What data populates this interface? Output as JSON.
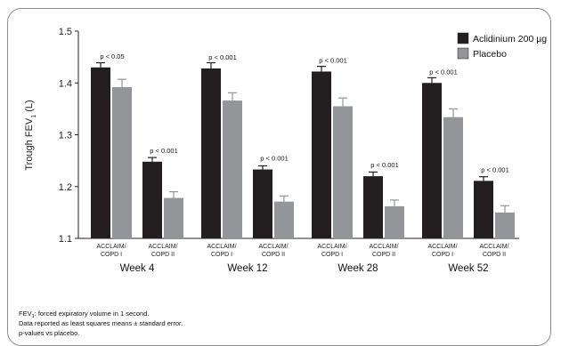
{
  "chart_data": {
    "type": "bar",
    "ylabel": "Trough FEV",
    "ylabel_sub": "1",
    "ylabel_unit": " (L)",
    "ylim": [
      1.1,
      1.5
    ],
    "yticks": [
      "1.1",
      "1.2",
      "1.3",
      "1.4",
      "1.5"
    ],
    "ytick_values": [
      1.1,
      1.2,
      1.3,
      1.4,
      1.5
    ],
    "groups": [
      {
        "week": "Week 4",
        "studies": [
          {
            "line1": "ACCLAIM/",
            "line2": "COPD I",
            "aclidinium": 1.43,
            "placebo": 1.392,
            "aclidinium_err": 0.009,
            "placebo_err": 0.015,
            "p_value": "p < 0.05"
          },
          {
            "line1": "ACCLAIM/",
            "line2": "COPD II",
            "aclidinium": 1.248,
            "placebo": 1.178,
            "aclidinium_err": 0.008,
            "placebo_err": 0.012,
            "p_value": "p < 0.001"
          }
        ]
      },
      {
        "week": "Week 12",
        "studies": [
          {
            "line1": "ACCLAIM/",
            "line2": "COPD I",
            "aclidinium": 1.428,
            "placebo": 1.366,
            "aclidinium_err": 0.011,
            "placebo_err": 0.015,
            "p_value": "p < 0.001"
          },
          {
            "line1": "ACCLAIM/",
            "line2": "COPD II",
            "aclidinium": 1.233,
            "placebo": 1.171,
            "aclidinium_err": 0.007,
            "placebo_err": 0.011,
            "p_value": "p < 0.001"
          }
        ]
      },
      {
        "week": "Week 28",
        "studies": [
          {
            "line1": "ACCLAIM/",
            "line2": "COPD I",
            "aclidinium": 1.422,
            "placebo": 1.355,
            "aclidinium_err": 0.01,
            "placebo_err": 0.016,
            "p_value": "p < 0.001"
          },
          {
            "line1": "ACCLAIM/",
            "line2": "COPD II",
            "aclidinium": 1.22,
            "placebo": 1.162,
            "aclidinium_err": 0.008,
            "placebo_err": 0.012,
            "p_value": "p < 0.001"
          }
        ]
      },
      {
        "week": "Week 52",
        "studies": [
          {
            "line1": "ACCLAIM/",
            "line2": "COPD I",
            "aclidinium": 1.4,
            "placebo": 1.334,
            "aclidinium_err": 0.01,
            "placebo_err": 0.016,
            "p_value": "p < 0.001"
          },
          {
            "line1": "ACCLAIM/",
            "line2": "COPD II",
            "aclidinium": 1.211,
            "placebo": 1.15,
            "aclidinium_err": 0.008,
            "placebo_err": 0.013,
            "p_value": "p < 0.001"
          }
        ]
      }
    ],
    "series": [
      {
        "name": "Aclidinium 200 µg",
        "color": "#231f20"
      },
      {
        "name": "Placebo",
        "color": "#939598"
      }
    ],
    "legend_position": "top-right",
    "grid": false
  },
  "footnotes": {
    "line1_a": "FEV",
    "line1_sub": "1",
    "line1_b": ": forced expiratory volume in 1 second.",
    "line2": "Data reported as least squares means ± standard error.",
    "line3": "p-values vs placebo."
  }
}
